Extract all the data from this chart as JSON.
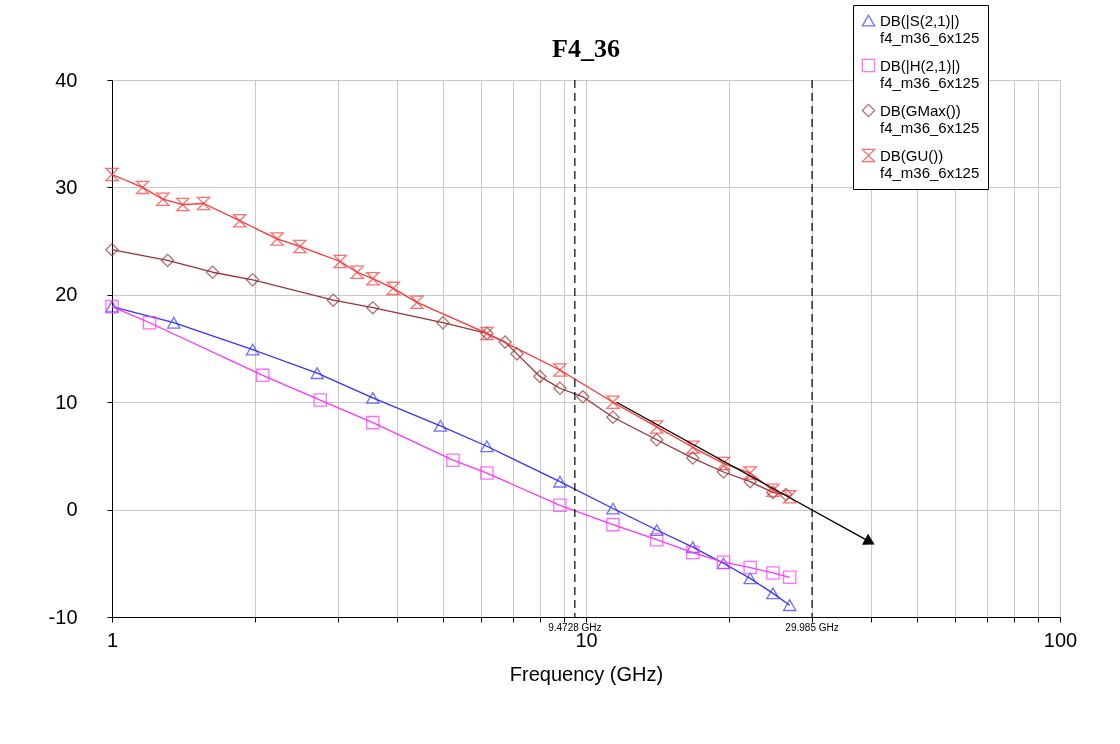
{
  "chart_data": {
    "type": "line",
    "title": "F4_36",
    "xlabel": "Frequency (GHz)",
    "log": "x",
    "grid": true,
    "legend": "top right",
    "xlim": [
      1,
      100
    ],
    "xticks": [
      1,
      {
        "value": 2,
        "label": null
      },
      {
        "value": 3,
        "label": null
      },
      {
        "value": 4,
        "label": null
      },
      {
        "value": 5,
        "label": null
      },
      {
        "value": 6,
        "label": null
      },
      {
        "value": 7,
        "label": null
      },
      {
        "value": 8,
        "label": null
      },
      {
        "value": 9,
        "label": null
      },
      10,
      {
        "value": 20,
        "label": null
      },
      {
        "value": 30,
        "label": null
      },
      {
        "value": 40,
        "label": null
      },
      {
        "value": 50,
        "label": null
      },
      {
        "value": 60,
        "label": null
      },
      {
        "value": 70,
        "label": null
      },
      {
        "value": 80,
        "label": null
      },
      {
        "value": 90,
        "label": null
      },
      100
    ],
    "ylim": [
      -10,
      40
    ],
    "yticks": [
      -10,
      0,
      10,
      20,
      30,
      40
    ],
    "series": [
      {
        "name": "DB(|S(2,1)|)\nf4_m36_6x125",
        "color": "#3333ff",
        "marker": "triangle",
        "x": [
          1,
          1.35,
          1.98,
          2.71,
          3.55,
          4.93,
          6.18,
          8.81,
          11.4,
          14.1,
          16.8,
          19.5,
          22.2,
          24.8,
          26.9
        ],
        "values": [
          18.9,
          17.4,
          14.9,
          12.7,
          10.4,
          7.8,
          5.9,
          2.6,
          0.1,
          -1.9,
          -3.5,
          -5.0,
          -6.4,
          -7.8,
          -8.9
        ]
      },
      {
        "name": "DB(|H(2,1)|)\nf4_m36_6x125",
        "color": "#ff33ff",
        "marker": "square",
        "x": [
          1,
          1.2,
          2.08,
          2.75,
          3.55,
          5.24,
          6.18,
          8.81,
          11.4,
          14.1,
          16.8,
          19.5,
          22.2,
          24.8,
          26.9
        ],
        "values": [
          18.9,
          17.4,
          12.5,
          10.2,
          8.1,
          4.6,
          3.4,
          0.4,
          -1.4,
          -2.8,
          -4.0,
          -4.9,
          -5.4,
          -5.9,
          -6.3
        ]
      },
      {
        "name": "DB(GMax())\nf4_m36_6x125",
        "color": "#993333",
        "marker": "diamond",
        "x": [
          1,
          1.31,
          1.63,
          1.98,
          2.93,
          3.55,
          4.99,
          6.18,
          6.75,
          7.15,
          7.99,
          8.81,
          9.85,
          11.4,
          14.1,
          16.8,
          19.5,
          22.2,
          24.8,
          26.4
        ],
        "values": [
          24.2,
          23.2,
          22.1,
          21.4,
          19.5,
          18.8,
          17.4,
          16.4,
          15.6,
          14.5,
          12.4,
          11.3,
          10.5,
          8.6,
          6.5,
          4.8,
          3.5,
          2.6,
          1.6,
          1.4
        ]
      },
      {
        "name": "DB(GU())\nf4_m36_6x125",
        "color": "#ff3333",
        "marker": "cross",
        "x": [
          1,
          1.16,
          1.28,
          1.41,
          1.56,
          1.86,
          2.23,
          2.49,
          3.03,
          3.29,
          3.55,
          3.92,
          4.4,
          6.18,
          8.81,
          11.4,
          14.1,
          16.8,
          19.5,
          22.2,
          24.8,
          26.9
        ],
        "values": [
          31.2,
          30.0,
          28.9,
          28.4,
          28.5,
          26.9,
          25.2,
          24.5,
          23.1,
          22.1,
          21.5,
          20.6,
          19.3,
          16.4,
          13.0,
          10.0,
          7.7,
          5.8,
          4.3,
          3.4,
          1.8,
          1.2
        ]
      },
      {
        "color": "#000000",
        "x": [
          11.6,
          39.7
        ],
        "values": [
          10.0,
          -3.0
        ]
      }
    ],
    "ref_lines": [
      {
        "axis": "x",
        "value": 9.4728,
        "label": "9.4728 GHz",
        "color": "#000000",
        "line_style": "dashed"
      },
      {
        "axis": "x",
        "value": 29.985,
        "label": "29.985 GHz",
        "color": "#000000",
        "line_style": "dashed"
      }
    ]
  }
}
